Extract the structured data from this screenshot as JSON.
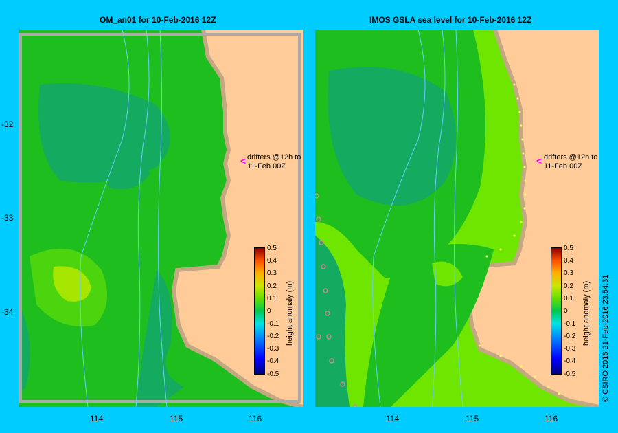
{
  "left_panel": {
    "title": "OM_an01  for 10-Feb-2016 12Z",
    "annotation_line1": "drifters @12h to",
    "annotation_line2": "11-Feb 00Z"
  },
  "right_panel": {
    "title": "IMOS GSLA sea level  for 10-Feb-2016 12Z",
    "annotation_line1": "drifters @12h to",
    "annotation_line2": "11-Feb 00Z"
  },
  "y_ticks": [
    "-32",
    "-33",
    "-34"
  ],
  "x_ticks": [
    "114",
    "115",
    "116"
  ],
  "colorbar": {
    "title": "height anomaly (m)",
    "labels": [
      "0.5",
      "0.4",
      "0.3",
      "0.2",
      "0.1",
      "0",
      "-0.1",
      "-0.2",
      "-0.3",
      "-0.4",
      "-0.5"
    ],
    "range": [
      -0.5,
      0.5
    ]
  },
  "credit": "© CSIRO 2016   21-Feb-2016 23:54:31",
  "colors": {
    "background": "#00CCFF",
    "land": "#FFCC99",
    "coast": "#C4A882",
    "anomaly_zero": "#1EBE1E",
    "anomaly_neg": "#14AA60",
    "anomaly_pos": "#6EE600",
    "drifter_marker": "#FF00FF"
  }
}
